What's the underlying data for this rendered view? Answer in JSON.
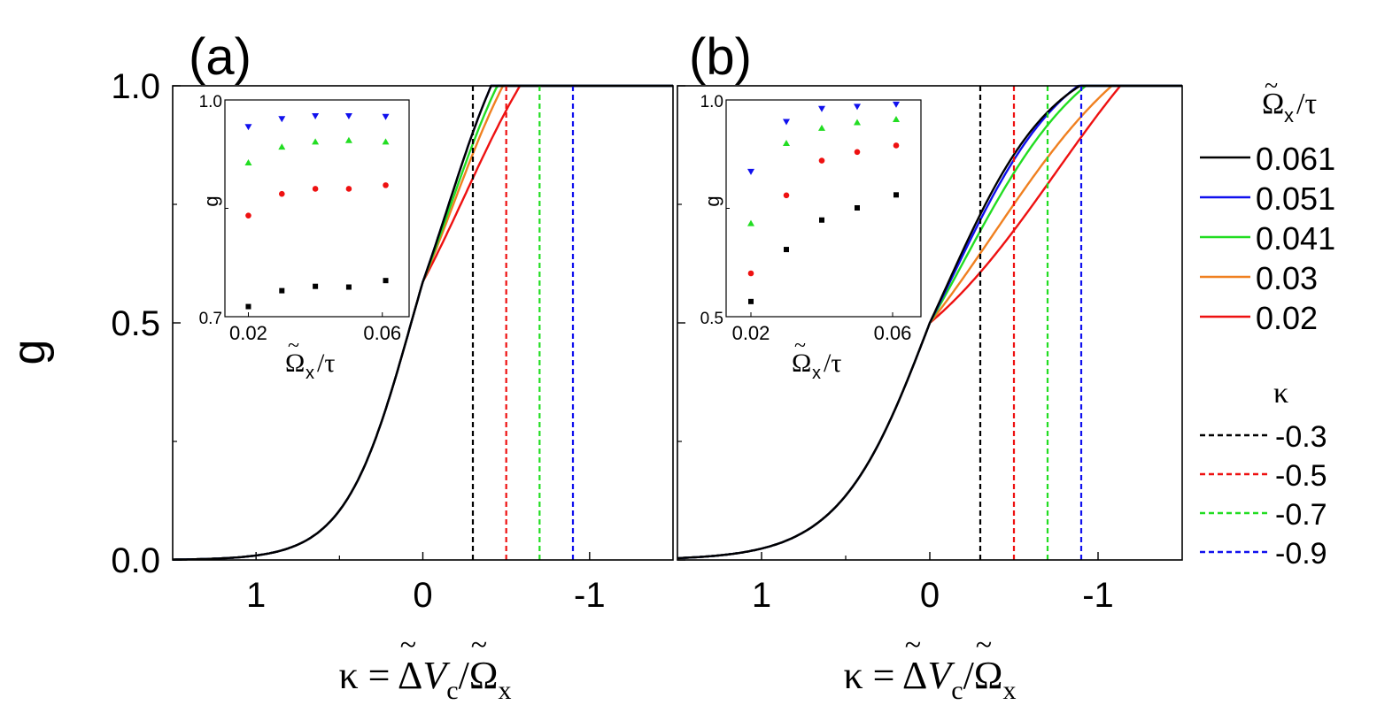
{
  "chart_data": {
    "type": "line",
    "figure_ylabel": "g",
    "panels": [
      {
        "label": "(a)",
        "xlabel": "κ = ΔṼc/Ω̃x",
        "ylabel": "g",
        "xlim": [
          1.5,
          -1.5
        ],
        "ylim": [
          0,
          1
        ],
        "xticks": [
          1,
          0,
          -1
        ],
        "xtick_labels": [
          "1",
          "0",
          "-1"
        ],
        "yticks": [
          0,
          0.5,
          1
        ],
        "ytick_labels": [
          "0.0",
          "0.5",
          "1.0"
        ],
        "series": [
          {
            "name": "0.061",
            "color": "#000000",
            "x0": 0.07,
            "w0": 0.2,
            "x1": -0.15,
            "w1": 0.23
          },
          {
            "name": "0.051",
            "color": "#1010ee",
            "x0": 0.07,
            "w0": 0.2,
            "x1": -0.15,
            "w1": 0.23
          },
          {
            "name": "0.041",
            "color": "#22dd22",
            "x0": 0.07,
            "w0": 0.2,
            "x1": -0.16,
            "w1": 0.25
          },
          {
            "name": "0.03",
            "color": "#f08020",
            "x0": 0.07,
            "w0": 0.2,
            "x1": -0.18,
            "w1": 0.27
          },
          {
            "name": "0.02",
            "color": "#ee1111",
            "x0": 0.07,
            "w0": 0.2,
            "x1": -0.25,
            "w1": 0.33
          }
        ],
        "kappa_lines": [
          -0.3,
          -0.5,
          -0.7,
          -0.9
        ],
        "inset": {
          "xlabel": "Ω̃x/τ",
          "ylabel": "g",
          "xlim": [
            0.013,
            0.068
          ],
          "ylim": [
            0.7,
            1.0
          ],
          "xtick_labels": [
            "0.02",
            "0.06"
          ],
          "ytick_labels": [
            "0.7",
            "1.0"
          ],
          "x": [
            0.02,
            0.03,
            0.04,
            0.05,
            0.061
          ],
          "series": [
            {
              "name": "-0.3",
              "marker": "square",
              "color": "#000000",
              "values": [
                0.714,
                0.736,
                0.742,
                0.741,
                0.75
              ]
            },
            {
              "name": "-0.5",
              "marker": "circle",
              "color": "#ee1111",
              "values": [
                0.84,
                0.87,
                0.877,
                0.877,
                0.882
              ]
            },
            {
              "name": "-0.7",
              "marker": "triangle-up",
              "color": "#22dd22",
              "values": [
                0.913,
                0.935,
                0.942,
                0.944,
                0.942
              ]
            },
            {
              "name": "-0.9",
              "marker": "triangle-down",
              "color": "#1010ee",
              "values": [
                0.963,
                0.974,
                0.978,
                0.978,
                0.977
              ]
            }
          ]
        }
      },
      {
        "label": "(b)",
        "xlabel": "κ = ΔṼc/Ω̃x",
        "ylabel": "g",
        "xlim": [
          1.5,
          -1.5
        ],
        "ylim": [
          0,
          1
        ],
        "xticks": [
          1,
          0,
          -1
        ],
        "xtick_labels": [
          "1",
          "0",
          "-1"
        ],
        "yticks": [
          0,
          0.5,
          1
        ],
        "ytick_labels": [
          "0.0",
          "0.5",
          "1.0"
        ],
        "series": [
          {
            "name": "0.061",
            "color": "#000000",
            "x0": 0.0,
            "w0": 0.27,
            "x1": -0.1,
            "w1": 0.32
          },
          {
            "name": "0.051",
            "color": "#1010ee",
            "x0": 0.0,
            "w0": 0.27,
            "x1": -0.14,
            "w1": 0.34
          },
          {
            "name": "0.041",
            "color": "#22dd22",
            "x0": 0.0,
            "w0": 0.27,
            "x1": -0.2,
            "w1": 0.38
          },
          {
            "name": "0.03",
            "color": "#f08020",
            "x0": 0.0,
            "w0": 0.27,
            "x1": -0.38,
            "w1": 0.48
          },
          {
            "name": "0.02",
            "color": "#ee1111",
            "x0": 0.0,
            "w0": 0.27,
            "x1": -0.75,
            "w1": 0.5
          }
        ],
        "kappa_lines": [
          -0.3,
          -0.5,
          -0.7,
          -0.9
        ],
        "inset": {
          "xlabel": "Ω̃x/τ",
          "ylabel": "g",
          "xlim": [
            0.013,
            0.068
          ],
          "ylim": [
            0.5,
            1.0
          ],
          "xtick_labels": [
            "0.02",
            "0.06"
          ],
          "ytick_labels": [
            "0.5",
            "1.0"
          ],
          "x": [
            0.02,
            0.03,
            0.04,
            0.05,
            0.061
          ],
          "series": [
            {
              "name": "-0.3",
              "marker": "square",
              "color": "#000000",
              "values": [
                0.535,
                0.655,
                0.723,
                0.751,
                0.781
              ]
            },
            {
              "name": "-0.5",
              "marker": "circle",
              "color": "#ee1111",
              "values": [
                0.6,
                0.78,
                0.86,
                0.88,
                0.895
              ]
            },
            {
              "name": "-0.7",
              "marker": "triangle-up",
              "color": "#22dd22",
              "values": [
                0.715,
                0.9,
                0.935,
                0.948,
                0.955
              ]
            },
            {
              "name": "-0.9",
              "marker": "triangle-down",
              "color": "#1010ee",
              "values": [
                0.835,
                0.95,
                0.98,
                0.985,
                0.99
              ]
            }
          ]
        }
      }
    ],
    "legend": {
      "curves_title": "Ω̃x/τ",
      "curves": [
        {
          "label": "0.061",
          "color": "#000000"
        },
        {
          "label": "0.051",
          "color": "#1010ee"
        },
        {
          "label": "0.041",
          "color": "#22dd22"
        },
        {
          "label": "0.03",
          "color": "#f08020"
        },
        {
          "label": "0.02",
          "color": "#ee1111"
        }
      ],
      "kappa_title": "κ",
      "kappa": [
        {
          "label": "-0.3",
          "color": "#000000"
        },
        {
          "label": "-0.5",
          "color": "#ee1111"
        },
        {
          "label": "-0.7",
          "color": "#22dd22"
        },
        {
          "label": "-0.9",
          "color": "#1010ee"
        }
      ]
    }
  }
}
